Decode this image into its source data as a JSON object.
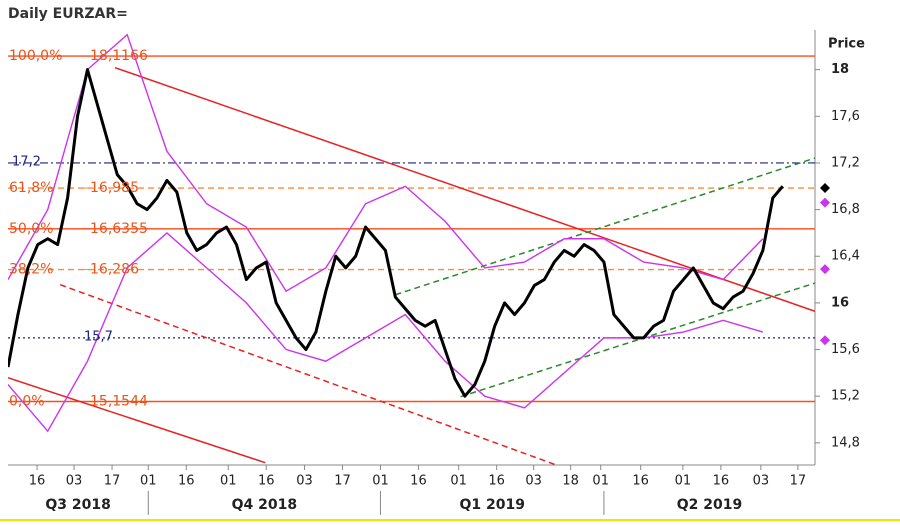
{
  "chart_data": {
    "type": "ohlc",
    "title": "Daily EURZAR=",
    "y_label": "Price",
    "xlim": [
      0,
      325
    ],
    "ylim": [
      14.61,
      18.34
    ],
    "yticks": [
      {
        "value": 14.8,
        "label": "14,8"
      },
      {
        "value": 15.2,
        "label": "15,2"
      },
      {
        "value": 15.6,
        "label": "15,6"
      },
      16,
      {
        "value": 16.4,
        "label": "16,4"
      },
      {
        "value": 16.8,
        "label": "16,8"
      },
      {
        "value": 17.2,
        "label": "17,2"
      },
      {
        "value": 17.6,
        "label": "17,6"
      },
      18
    ],
    "xticks": [
      {
        "value": 11.7,
        "label": "16"
      },
      {
        "value": 26.6,
        "label": "03"
      },
      {
        "value": 41.9,
        "label": "17"
      },
      {
        "value": 56.5,
        "label": "01"
      },
      {
        "value": 71.8,
        "label": "16"
      },
      {
        "value": 88.7,
        "label": "01"
      },
      {
        "value": 104,
        "label": "16"
      },
      {
        "value": 119.4,
        "label": "03"
      },
      {
        "value": 134.7,
        "label": "17"
      },
      {
        "value": 150,
        "label": "01"
      },
      {
        "value": 165.3,
        "label": "16"
      },
      {
        "value": 181.5,
        "label": "01"
      },
      {
        "value": 196.8,
        "label": "16"
      },
      {
        "value": 211.7,
        "label": "03"
      },
      {
        "value": 226.6,
        "label": "18"
      },
      {
        "value": 238.7,
        "label": "01"
      },
      {
        "value": 254.8,
        "label": "16"
      },
      {
        "value": 271.8,
        "label": "01"
      },
      {
        "value": 287.1,
        "label": "16"
      },
      {
        "value": 303.2,
        "label": "03"
      },
      {
        "value": 318.1,
        "label": "17"
      }
    ],
    "quarters": [
      {
        "label": "Q3 2018",
        "start": 0,
        "end": 56.5
      },
      {
        "label": "Q4 2018",
        "start": 56.5,
        "end": 150
      },
      {
        "label": "Q1 2019",
        "start": 150,
        "end": 240
      },
      {
        "label": "Q2 2019",
        "start": 240,
        "end": 325
      }
    ],
    "series": [
      {
        "name": "EURZAR=",
        "color": "#000000",
        "x": [
          0,
          4,
          8,
          12,
          16,
          20,
          24,
          28,
          32,
          36,
          40,
          44,
          48,
          52,
          56,
          60,
          64,
          68,
          72,
          76,
          80,
          84,
          88,
          92,
          96,
          100,
          104,
          108,
          112,
          116,
          120,
          124,
          128,
          132,
          136,
          140,
          144,
          148,
          152,
          156,
          160,
          164,
          168,
          172,
          176,
          180,
          184,
          188,
          192,
          196,
          200,
          204,
          208,
          212,
          216,
          220,
          224,
          228,
          232,
          236,
          240,
          244,
          248,
          252,
          256,
          260,
          264,
          268,
          272,
          276,
          280,
          284,
          288,
          292,
          296,
          300,
          304,
          308,
          312
        ],
        "values": [
          15.45,
          15.9,
          16.3,
          16.5,
          16.55,
          16.5,
          16.9,
          17.6,
          18.0,
          17.7,
          17.4,
          17.1,
          17.0,
          16.85,
          16.8,
          16.9,
          17.05,
          16.95,
          16.6,
          16.45,
          16.5,
          16.6,
          16.65,
          16.5,
          16.2,
          16.3,
          16.35,
          16.0,
          15.85,
          15.7,
          15.6,
          15.75,
          16.1,
          16.4,
          16.3,
          16.4,
          16.65,
          16.55,
          16.45,
          16.05,
          15.95,
          15.85,
          15.8,
          15.85,
          15.6,
          15.35,
          15.2,
          15.3,
          15.5,
          15.8,
          16.0,
          15.9,
          16.0,
          16.15,
          16.2,
          16.35,
          16.45,
          16.4,
          16.5,
          16.45,
          16.35,
          15.9,
          15.8,
          15.7,
          15.7,
          15.8,
          15.85,
          16.1,
          16.2,
          16.3,
          16.15,
          16.0,
          15.95,
          16.05,
          16.1,
          16.25,
          16.45,
          16.9,
          17.0
        ]
      }
    ],
    "bands": {
      "color": "#cc33ee",
      "x": [
        0,
        16,
        32,
        48,
        64,
        80,
        96,
        112,
        128,
        144,
        160,
        176,
        192,
        208,
        224,
        240,
        256,
        272,
        288,
        304
      ],
      "upper": [
        16.2,
        16.8,
        18.0,
        18.3,
        17.3,
        16.85,
        16.65,
        16.1,
        16.3,
        16.85,
        17.0,
        16.7,
        16.3,
        16.35,
        16.55,
        16.55,
        16.35,
        16.3,
        16.2,
        16.55
      ],
      "lower": [
        15.3,
        14.9,
        15.5,
        16.3,
        16.6,
        16.3,
        16.0,
        15.6,
        15.5,
        15.7,
        15.9,
        15.5,
        15.2,
        15.1,
        15.4,
        15.7,
        15.7,
        15.75,
        15.85,
        15.75
      ]
    },
    "levels": [
      {
        "pct": {
          "value": 100,
          "label": "100,0%"
        },
        "price": {
          "value": 18.1166,
          "label": "18,1166"
        },
        "style": "solid",
        "color": "#ff4a1a"
      },
      {
        "pct": {
          "value": 61.8,
          "label": "61,8%"
        },
        "price": {
          "value": 16.985,
          "label": "16,985"
        },
        "style": "dashed",
        "color": "#ff8a3a"
      },
      {
        "pct": {
          "value": 50,
          "label": "50,0%"
        },
        "price": {
          "value": 16.6355,
          "label": "16,6355"
        },
        "style": "solid",
        "color": "#ff4a1a"
      },
      {
        "pct": {
          "value": 38.2,
          "label": "38,2%"
        },
        "price": {
          "value": 16.286,
          "label": "16,286"
        },
        "style": "dashed",
        "color": "#ff8a3a"
      },
      {
        "pct": {
          "value": 0,
          "label": "0,0%"
        },
        "price": {
          "value": 15.1544,
          "label": "15,1544"
        },
        "style": "solid",
        "color": "#ff4a1a"
      }
    ],
    "hlines": [
      {
        "price": {
          "value": 17.2,
          "label": "17,2"
        },
        "style": "dashdot",
        "color": "#1a237e"
      },
      {
        "price": {
          "value": 15.7,
          "label": "15,7"
        },
        "style": "dotted",
        "color": "#1a237e"
      }
    ],
    "trendlines": [
      {
        "x": [
          43.1,
          325.4
        ],
        "y": [
          18.017,
          15.925
        ],
        "color": "#e82020",
        "style": "solid"
      },
      {
        "x": [
          21,
          220.6
        ],
        "y": [
          16.156,
          14.612
        ],
        "color": "#e82020",
        "style": "dashed"
      },
      {
        "x": [
          0,
          103.6
        ],
        "y": [
          15.358,
          14.63
        ],
        "color": "#e82020",
        "style": "solid"
      },
      {
        "x": [
          156,
          325.4
        ],
        "y": [
          16.07,
          17.245
        ],
        "color": "#2a8a2a",
        "style": "dashed"
      },
      {
        "x": [
          182.3,
          325.4
        ],
        "y": [
          15.196,
          16.173
        ],
        "color": "#2a8a2a",
        "style": "dashed"
      }
    ],
    "markers": [
      {
        "value": 16.985,
        "color": "#000000"
      },
      {
        "value": 16.86,
        "color": "#cc33ee"
      },
      {
        "value": 16.29,
        "color": "#cc33ee"
      },
      {
        "value": 15.68,
        "color": "#cc33ee"
      }
    ]
  }
}
